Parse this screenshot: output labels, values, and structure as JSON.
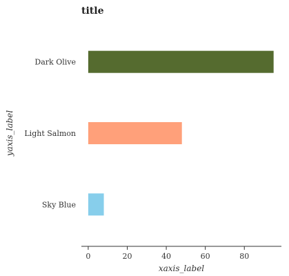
{
  "chart_data": {
    "type": "bar",
    "orientation": "horizontal",
    "title": "title",
    "xlabel": "xaxis_label",
    "ylabel": "yaxis_label",
    "categories": [
      "Sky Blue",
      "Light Salmon",
      "Dark Olive"
    ],
    "values": [
      8,
      48,
      95
    ],
    "colors": [
      "#87ceeb",
      "#ffa07a",
      "#556b2f"
    ],
    "xlim": [
      -3.5,
      99
    ],
    "xticks": [
      0,
      20,
      40,
      60,
      80
    ],
    "grid": false
  }
}
